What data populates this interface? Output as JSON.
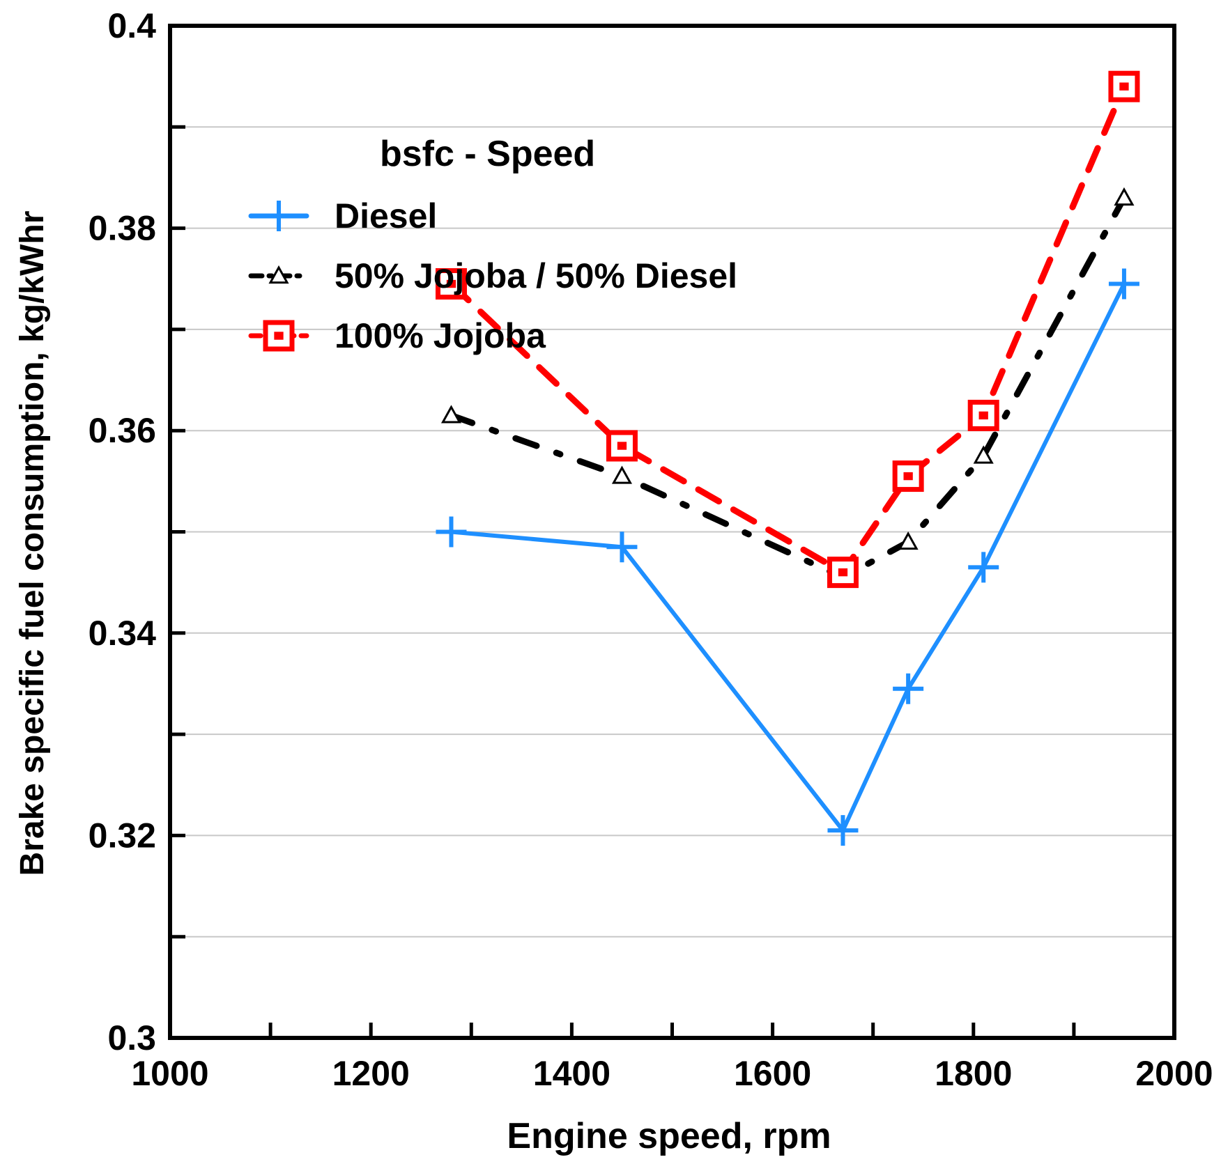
{
  "chart_data": {
    "type": "line",
    "title": "",
    "legend_title": "bsfc - Speed",
    "xlabel": "Engine speed, rpm",
    "ylabel": "Brake specific fuel consumption, kg/kWhr",
    "xlim": [
      1000,
      2000
    ],
    "ylim": [
      0.3,
      0.4
    ],
    "x_ticks": [
      1000,
      1200,
      1400,
      1600,
      1800,
      2000
    ],
    "x_tick_labels": [
      "1000",
      "1200",
      "1400",
      "1600",
      "1800",
      "2000"
    ],
    "y_ticks": [
      0.3,
      0.32,
      0.34,
      0.36,
      0.38,
      0.4
    ],
    "y_tick_labels": [
      "0.3",
      "0.32",
      "0.34",
      "0.36",
      "0.38",
      "0.4"
    ],
    "grid": true,
    "legend_position": "top-left",
    "series": [
      {
        "name": "Diesel",
        "color": "#1E8FFF",
        "marker": "plus",
        "line_style": "solid",
        "x": [
          1280,
          1450,
          1670,
          1735,
          1810,
          1950
        ],
        "y": [
          0.35,
          0.3485,
          0.3205,
          0.3345,
          0.3465,
          0.3745
        ]
      },
      {
        "name": "50% Jojoba / 50% Diesel",
        "color": "#000000",
        "marker": "triangle",
        "line_style": "dash-dot",
        "x": [
          1280,
          1450,
          1670,
          1735,
          1810,
          1950
        ],
        "y": [
          0.3615,
          0.3555,
          0.3455,
          0.349,
          0.3575,
          0.383
        ]
      },
      {
        "name": "100% Jojoba",
        "color": "#FF0000",
        "marker": "square",
        "line_style": "dashed",
        "x": [
          1280,
          1450,
          1670,
          1735,
          1810,
          1950
        ],
        "y": [
          0.3745,
          0.3585,
          0.346,
          0.3555,
          0.3615,
          0.394
        ]
      }
    ]
  }
}
